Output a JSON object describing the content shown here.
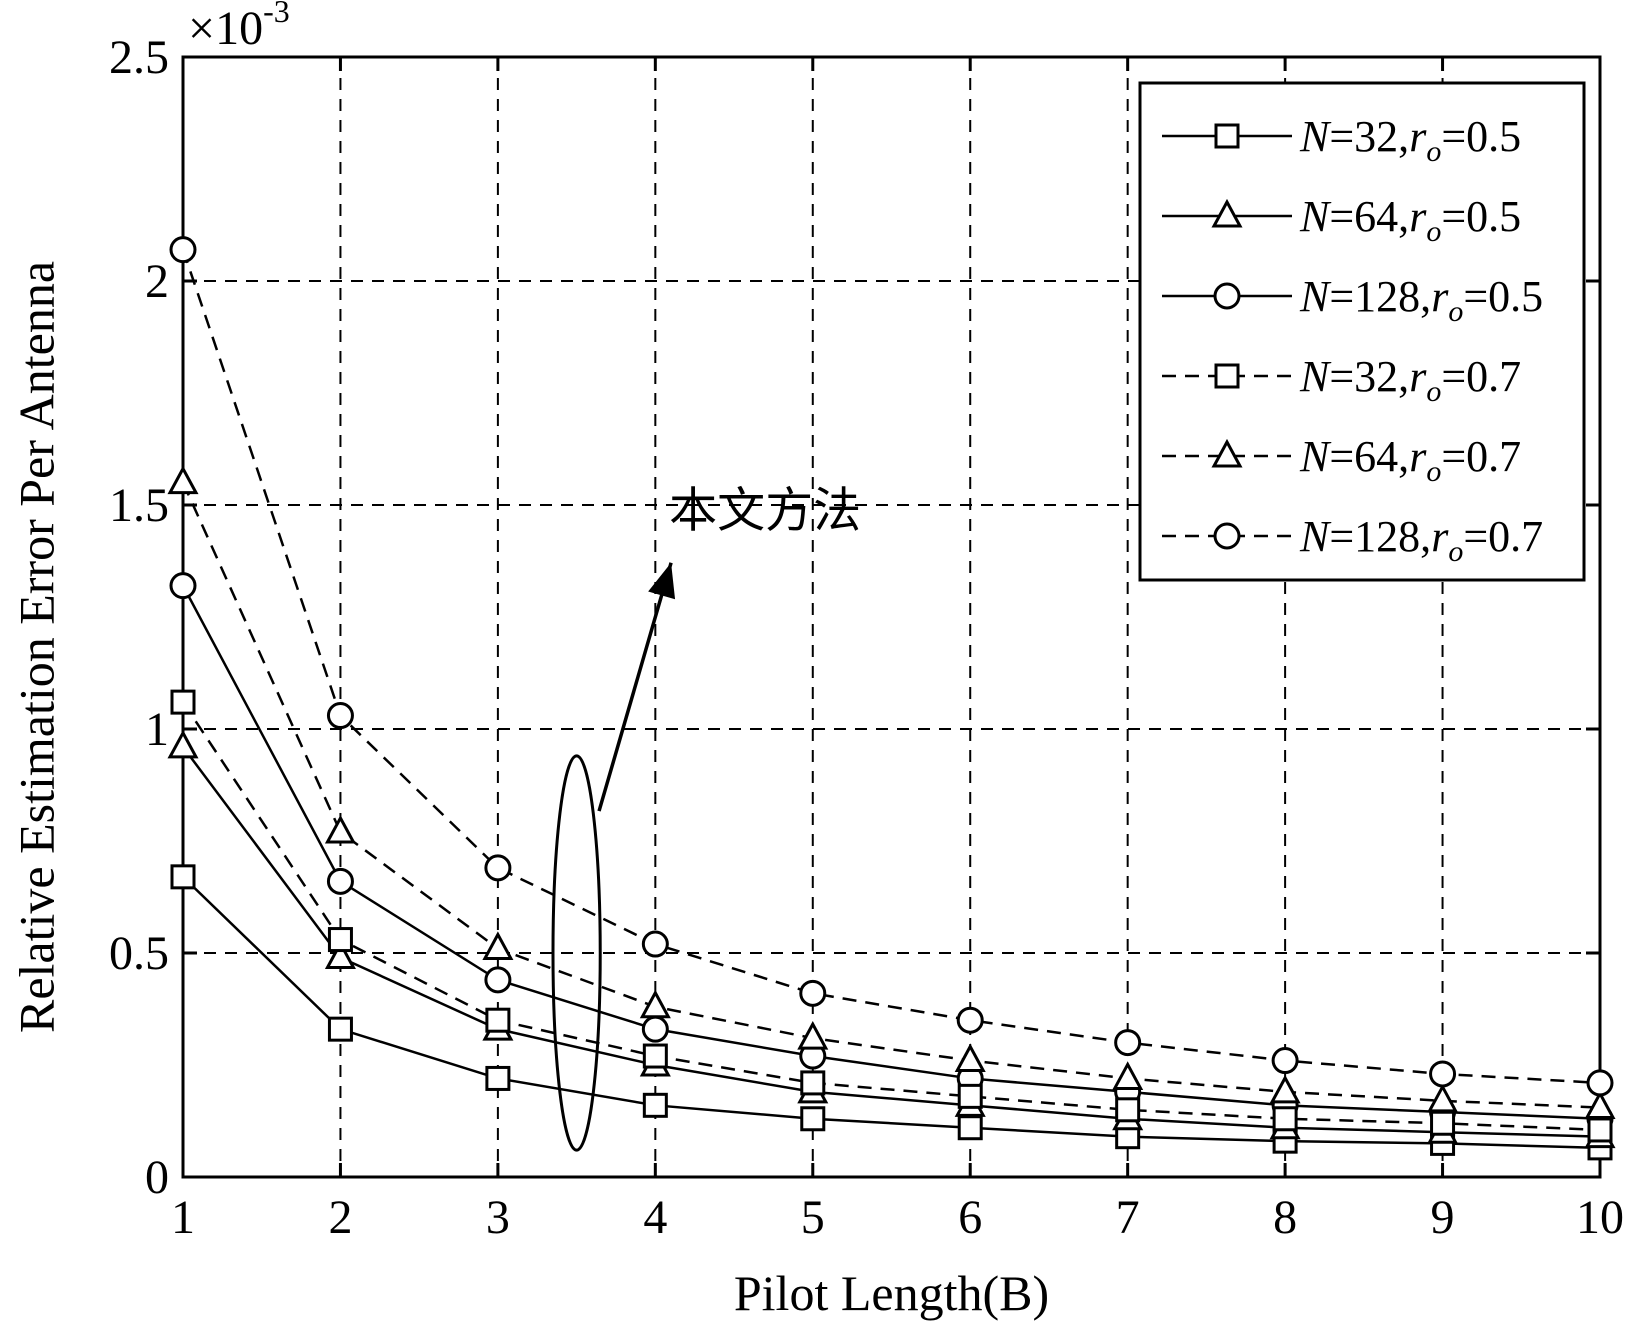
{
  "chart_data": {
    "type": "line",
    "xlabel": "Pilot Length(B)",
    "ylabel": "Relative Estimation Error Per Antenna",
    "exponent_label": "×10",
    "exponent_power": "-3",
    "x": [
      1,
      2,
      3,
      4,
      5,
      6,
      7,
      8,
      9,
      10
    ],
    "xlim": [
      1,
      10
    ],
    "ylim": [
      0,
      2.5
    ],
    "x_ticks": [
      "1",
      "2",
      "3",
      "4",
      "5",
      "6",
      "7",
      "8",
      "9",
      "10"
    ],
    "y_ticks": [
      {
        "value": 0,
        "label": "0"
      },
      {
        "value": 0.5,
        "label": "0.5"
      },
      {
        "value": 1,
        "label": "1"
      },
      {
        "value": 1.5,
        "label": "1.5"
      },
      {
        "value": 2,
        "label": "2"
      },
      {
        "value": 2.5,
        "label": "2.5"
      }
    ],
    "grid": true,
    "grid_style": "dashed",
    "legend_position": "top-right",
    "series": [
      {
        "N": "32",
        "r": "0.5",
        "line": "solid",
        "marker": "square",
        "values": [
          0.67,
          0.33,
          0.22,
          0.16,
          0.13,
          0.11,
          0.09,
          0.08,
          0.075,
          0.065
        ]
      },
      {
        "N": "64",
        "r": "0.5",
        "line": "solid",
        "marker": "triangle",
        "values": [
          0.96,
          0.49,
          0.33,
          0.25,
          0.19,
          0.16,
          0.13,
          0.11,
          0.1,
          0.09
        ]
      },
      {
        "N": "128",
        "r": "0.5",
        "line": "solid",
        "marker": "circle",
        "values": [
          1.32,
          0.66,
          0.44,
          0.33,
          0.27,
          0.22,
          0.19,
          0.16,
          0.145,
          0.13
        ]
      },
      {
        "N": "32",
        "r": "0.7",
        "line": "dashed",
        "marker": "square",
        "values": [
          1.06,
          0.53,
          0.35,
          0.27,
          0.21,
          0.18,
          0.15,
          0.13,
          0.12,
          0.105
        ]
      },
      {
        "N": "64",
        "r": "0.7",
        "line": "dashed",
        "marker": "triangle",
        "values": [
          1.55,
          0.77,
          0.51,
          0.38,
          0.31,
          0.26,
          0.22,
          0.19,
          0.17,
          0.155
        ]
      },
      {
        "N": "128",
        "r": "0.7",
        "line": "dashed",
        "marker": "circle",
        "values": [
          2.07,
          1.03,
          0.69,
          0.52,
          0.41,
          0.35,
          0.3,
          0.26,
          0.23,
          0.21
        ]
      }
    ],
    "annotation": {
      "text": "本文方法",
      "ellipse_center": [
        3.5,
        0.5
      ],
      "ellipse_radii": [
        0.15,
        0.44
      ]
    }
  },
  "legend": {
    "prefix_symbol": "N",
    "r_symbol": "r",
    "r_subscript": "o"
  }
}
